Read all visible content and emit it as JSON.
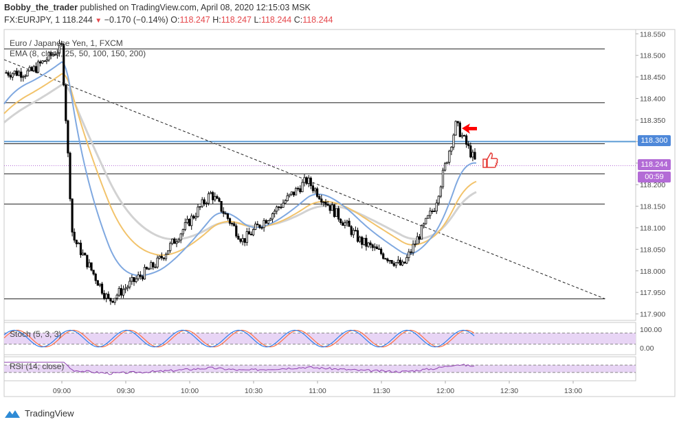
{
  "header": {
    "author": "Bobby_the_trader",
    "published_text": "published on TradingView.com, April 08, 2020 12:15:03 MSK",
    "symbol": "FX:EURJPY, 1",
    "last": "118.244",
    "change": "−0.170 (−0.14%)",
    "o_label": "O:",
    "o": "118.247",
    "h_label": "H:",
    "h": "118.247",
    "l_label": "L:",
    "l": "118.244",
    "c_label": "C:",
    "c": "118.244"
  },
  "legend": {
    "instrument": "Euro / Japanese Yen, 1, FXCM",
    "ema": "EMA (8, close, 25, 50, 100, 150, 200)",
    "stoch": "Stoch (5, 3, 3)",
    "rsi": "RSI (14, close)"
  },
  "price_tags": {
    "level": "118.300",
    "last": "118.244",
    "countdown": "00:59"
  },
  "brand": "TradingView",
  "colors": {
    "up": "#ffffff",
    "down": "#000000",
    "level_line": "#1f1f1f",
    "blue_level": "#5b9bd5",
    "ema_blue": "#7fa8e0",
    "ema_orange": "#f2c36b",
    "ema_gray": "#d2d2d2",
    "last_line": "#b36bd6",
    "stoch_band": "#e8d5f5",
    "stoch_k": "#2f80ed",
    "stoch_d": "#ff7043",
    "rsi_line": "#8e3fb0",
    "arrow": "#ff0000"
  },
  "chart_data": {
    "type": "candlestick",
    "y_ticks": [
      "118.550",
      "118.500",
      "118.450",
      "118.400",
      "118.350",
      "118.300",
      "118.250",
      "118.200",
      "118.150",
      "118.100",
      "118.050",
      "118.000",
      "117.950",
      "117.900"
    ],
    "ylim": [
      117.885,
      118.56
    ],
    "x_ticks": [
      "09:00",
      "09:30",
      "10:00",
      "10:30",
      "11:00",
      "11:30",
      "12:00",
      "12:30",
      "13:00"
    ],
    "horizontal_levels": [
      118.515,
      118.39,
      118.295,
      118.225,
      118.155,
      117.935
    ],
    "highlighted_level": 118.3,
    "last_price": 118.244,
    "trendline": {
      "from": [
        "08:45",
        118.49
      ],
      "to": [
        "13:15",
        117.935
      ]
    },
    "key_points": [
      {
        "time": "08:45",
        "price": 118.46
      },
      {
        "time": "09:00",
        "price": 118.52
      },
      {
        "time": "09:05",
        "price": 118.08
      },
      {
        "time": "09:22",
        "price": 117.93
      },
      {
        "time": "09:45",
        "price": 118.02
      },
      {
        "time": "10:10",
        "price": 118.18
      },
      {
        "time": "10:25",
        "price": 118.07
      },
      {
        "time": "10:55",
        "price": 118.21
      },
      {
        "time": "11:20",
        "price": 118.07
      },
      {
        "time": "11:40",
        "price": 118.01
      },
      {
        "time": "11:55",
        "price": 118.15
      },
      {
        "time": "12:05",
        "price": 118.34
      },
      {
        "time": "12:15",
        "price": 118.244
      }
    ],
    "stoch": {
      "bounds": [
        0,
        100
      ],
      "band": [
        20,
        80
      ],
      "ticks": [
        "100.00",
        "0.00"
      ]
    },
    "rsi": {
      "band": [
        30,
        70
      ]
    }
  }
}
